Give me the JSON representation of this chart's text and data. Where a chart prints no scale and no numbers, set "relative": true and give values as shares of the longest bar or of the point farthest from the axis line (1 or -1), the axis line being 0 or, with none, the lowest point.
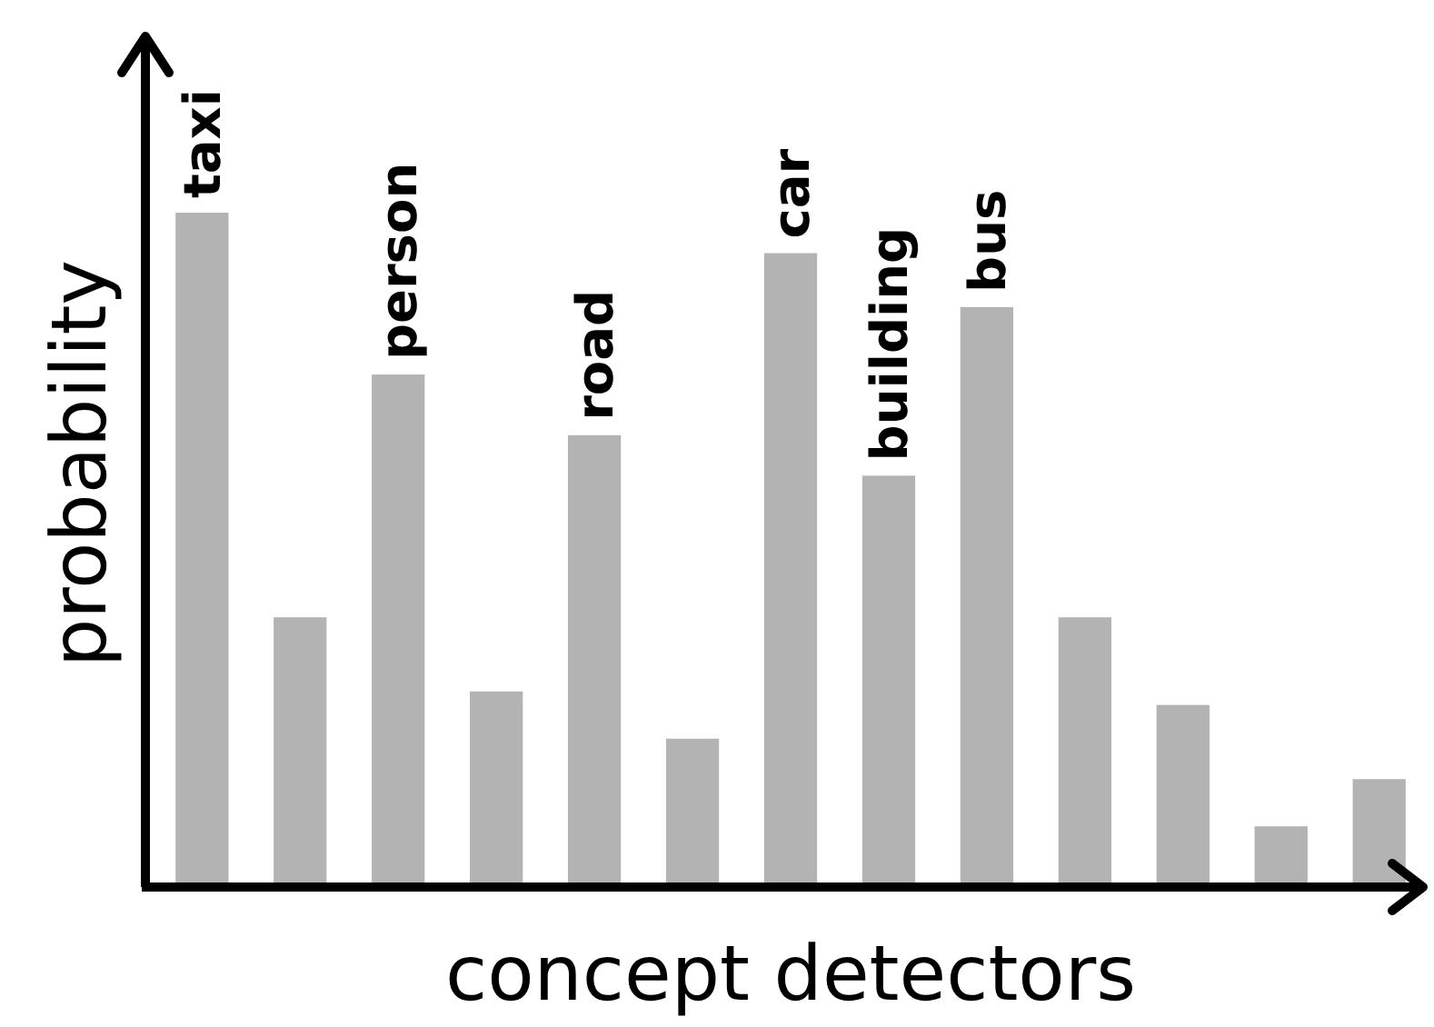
{
  "chart_data": {
    "type": "bar",
    "relative": true,
    "xlabel": "concept detectors",
    "ylabel": "probability",
    "categories": [
      "taxi",
      null,
      "person",
      null,
      "road",
      null,
      "car",
      "building",
      "bus",
      null,
      null,
      null,
      null
    ],
    "values": [
      1,
      0.4,
      0.76,
      0.29,
      0.67,
      0.22,
      0.94,
      0.61,
      0.86,
      0.4,
      0.27,
      0.09,
      0.16
    ],
    "color": "#b3b3b3"
  }
}
